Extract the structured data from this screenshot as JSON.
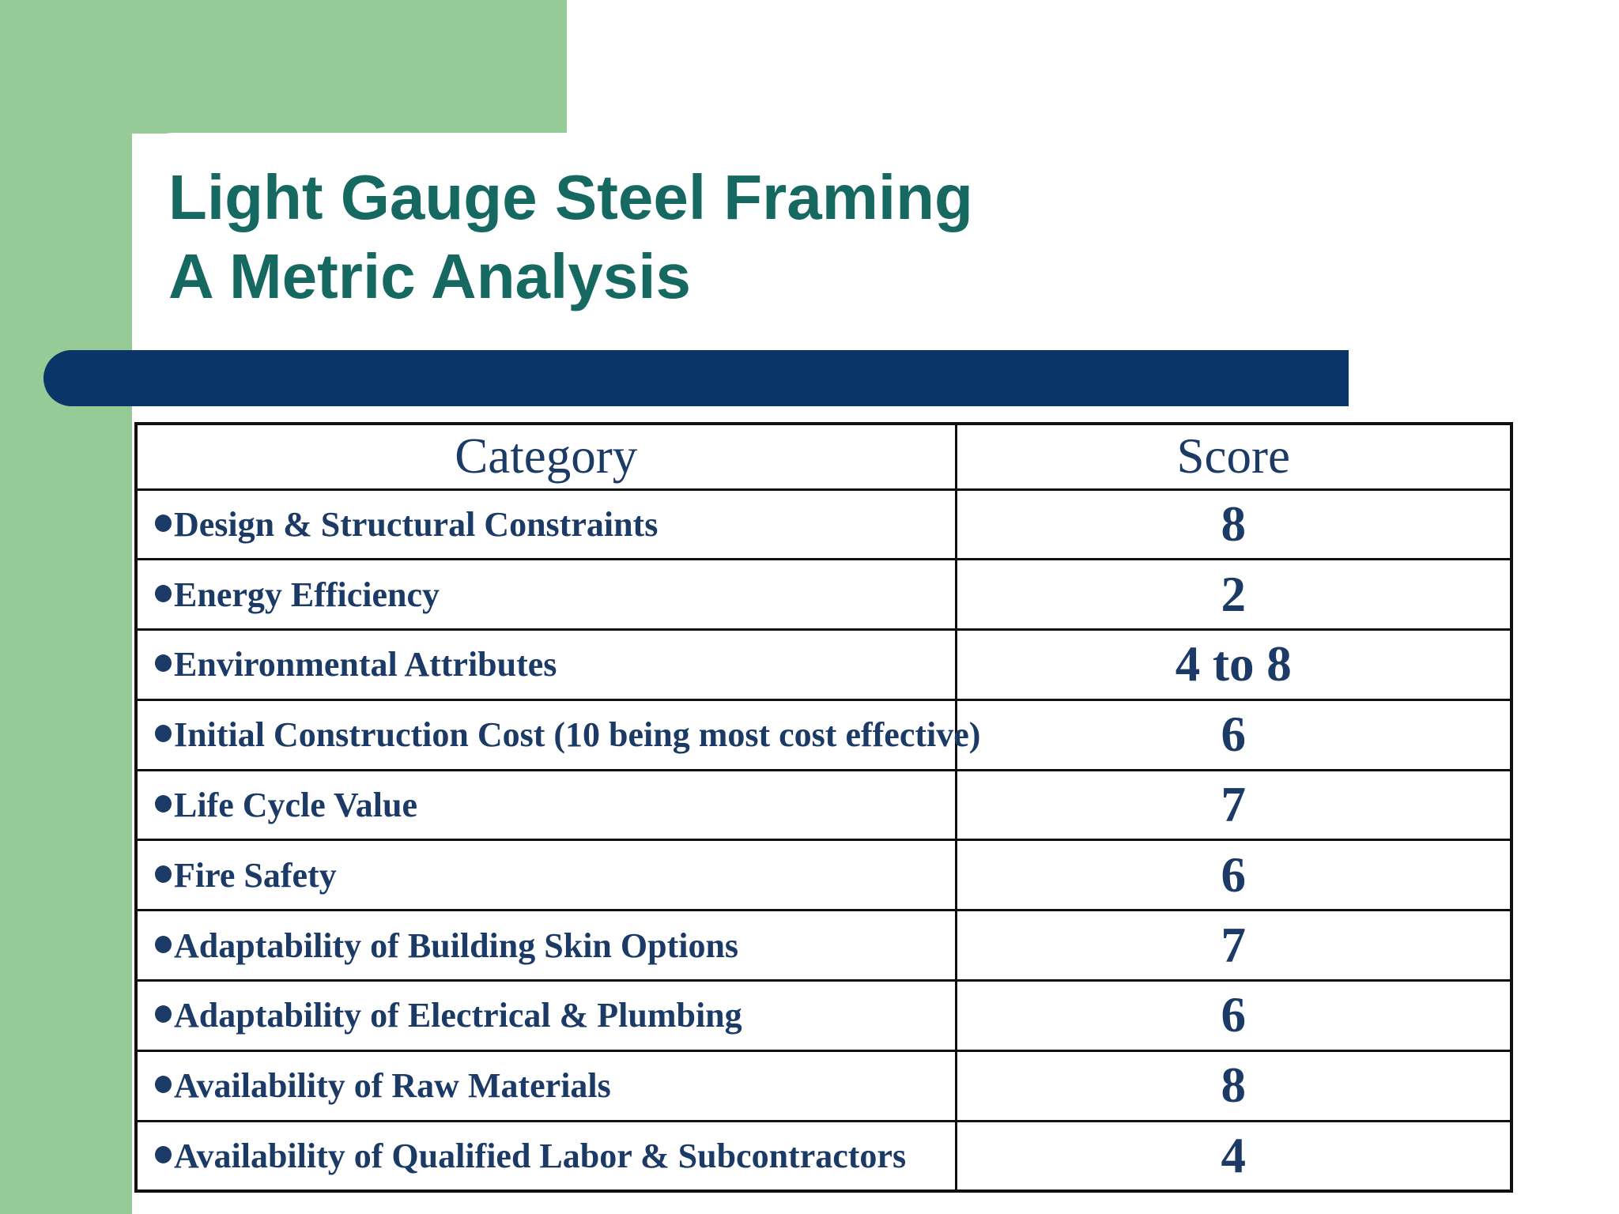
{
  "title": {
    "line1": "Light Gauge Steel Framing",
    "line2": "A Metric Analysis"
  },
  "table": {
    "headers": {
      "category": "Category",
      "score": "Score"
    },
    "rows": [
      {
        "category": "Design & Structural Constraints",
        "score": "8"
      },
      {
        "category": "Energy Efficiency",
        "score": "2"
      },
      {
        "category": "Environmental Attributes",
        "score": "4 to 8"
      },
      {
        "category": "Initial Construction Cost (10 being most cost effective)",
        "score": "6"
      },
      {
        "category": "Life Cycle Value",
        "score": "7"
      },
      {
        "category": "Fire Safety",
        "score": "6"
      },
      {
        "category": "Adaptability of Building Skin Options",
        "score": "7"
      },
      {
        "category": "Adaptability of Electrical & Plumbing",
        "score": "6"
      },
      {
        "category": "Availability of Raw Materials",
        "score": "8"
      },
      {
        "category": "Availability of Qualified Labor & Subcontractors",
        "score": "4"
      }
    ]
  },
  "colors": {
    "sidebar_green": "#96CA96",
    "title_teal": "#166960",
    "divider_navy": "#0A3568",
    "table_text_navy": "#1B3A66",
    "table_border": "#101010",
    "background": "#FFFFFF"
  }
}
